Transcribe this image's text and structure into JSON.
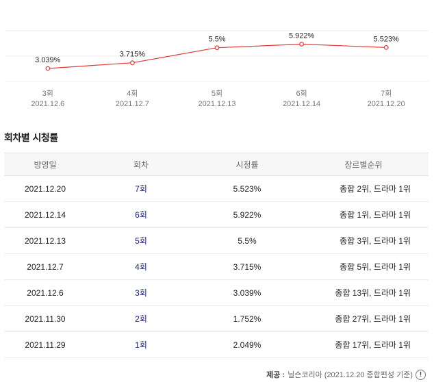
{
  "chart_data": {
    "type": "line",
    "categories": [
      "3회",
      "4회",
      "5회",
      "6회",
      "7회"
    ],
    "dates": [
      "2021.12.6",
      "2021.12.7",
      "2021.12.13",
      "2021.12.14",
      "2021.12.20"
    ],
    "values": [
      3.039,
      3.715,
      5.5,
      5.922,
      5.523
    ],
    "value_labels": [
      "3.039%",
      "3.715%",
      "5.5%",
      "5.922%",
      "5.523%"
    ],
    "ylim": [
      1.5,
      7.5
    ],
    "grid": true,
    "line_color": "#e53935"
  },
  "section_title": "회차별 시청률",
  "table": {
    "headers": [
      "방영일",
      "회차",
      "시청률",
      "장르별순위"
    ],
    "rows": [
      {
        "date": "2021.12.20",
        "episode": "7회",
        "rating": "5.523%",
        "rank": "종합 2위, 드라마 1위"
      },
      {
        "date": "2021.12.14",
        "episode": "6회",
        "rating": "5.922%",
        "rank": "종합 1위, 드라마 1위"
      },
      {
        "date": "2021.12.13",
        "episode": "5회",
        "rating": "5.5%",
        "rank": "종합 3위, 드라마 1위"
      },
      {
        "date": "2021.12.7",
        "episode": "4회",
        "rating": "3.715%",
        "rank": "종합 5위, 드라마 1위"
      },
      {
        "date": "2021.12.6",
        "episode": "3회",
        "rating": "3.039%",
        "rank": "종합 13위, 드라마 1위"
      },
      {
        "date": "2021.11.30",
        "episode": "2회",
        "rating": "1.752%",
        "rank": "종합 27위, 드라마 1위"
      },
      {
        "date": "2021.11.29",
        "episode": "1회",
        "rating": "2.049%",
        "rank": "종합 17위, 드라마 1위"
      }
    ]
  },
  "footer": {
    "label": "제공 :",
    "source": "닐슨코리아 (2021.12.20 종합편성 기준)",
    "info_icon": "info-icon",
    "info_glyph": "!"
  }
}
